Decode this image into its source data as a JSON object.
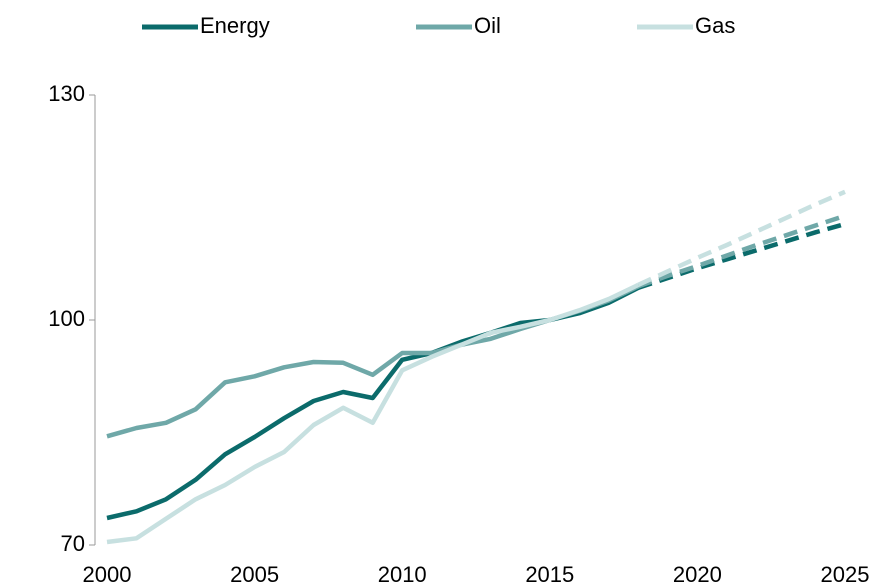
{
  "chart_data": {
    "type": "line",
    "x": [
      2000,
      2001,
      2002,
      2003,
      2004,
      2005,
      2006,
      2007,
      2008,
      2009,
      2010,
      2011,
      2012,
      2013,
      2014,
      2015,
      2016,
      2017,
      2018,
      2019,
      2020,
      2021,
      2022,
      2023,
      2024,
      2025
    ],
    "forecast_from": 2018,
    "series": [
      {
        "name": "Energy",
        "color": "#0b6b6b",
        "values": [
          73.6,
          74.5,
          76.1,
          78.7,
          82.1,
          84.4,
          86.9,
          89.2,
          90.4,
          89.6,
          94.7,
          95.6,
          97.1,
          98.3,
          99.6,
          100,
          100.9,
          102.3,
          104.3,
          105.6,
          106.9,
          108.1,
          109.3,
          110.5,
          111.7,
          112.8
        ]
      },
      {
        "name": "Oil",
        "color": "#6fa8a8",
        "values": [
          84.5,
          85.6,
          86.3,
          88.1,
          91.7,
          92.5,
          93.7,
          94.4,
          94.3,
          92.7,
          95.6,
          95.6,
          96.7,
          97.5,
          98.8,
          100,
          101.2,
          102.6,
          104.5,
          105.9,
          107.2,
          108.6,
          110.0,
          111.3,
          112.6,
          113.9
        ]
      },
      {
        "name": "Gas",
        "color": "#c7e0e0",
        "values": [
          70.4,
          70.9,
          73.5,
          76.1,
          78.0,
          80.4,
          82.4,
          86.0,
          88.3,
          86.3,
          93.3,
          95.1,
          96.7,
          98.3,
          99.1,
          100,
          101.3,
          102.8,
          104.7,
          106.5,
          108.3,
          110.0,
          111.8,
          113.6,
          115.4,
          117.1
        ]
      }
    ],
    "xlim": [
      2000,
      2025
    ],
    "xticks": [
      2000,
      2005,
      2010,
      2015,
      2020,
      2025
    ],
    "ylim": [
      70,
      130
    ],
    "yticks": [
      70,
      100,
      130
    ]
  }
}
